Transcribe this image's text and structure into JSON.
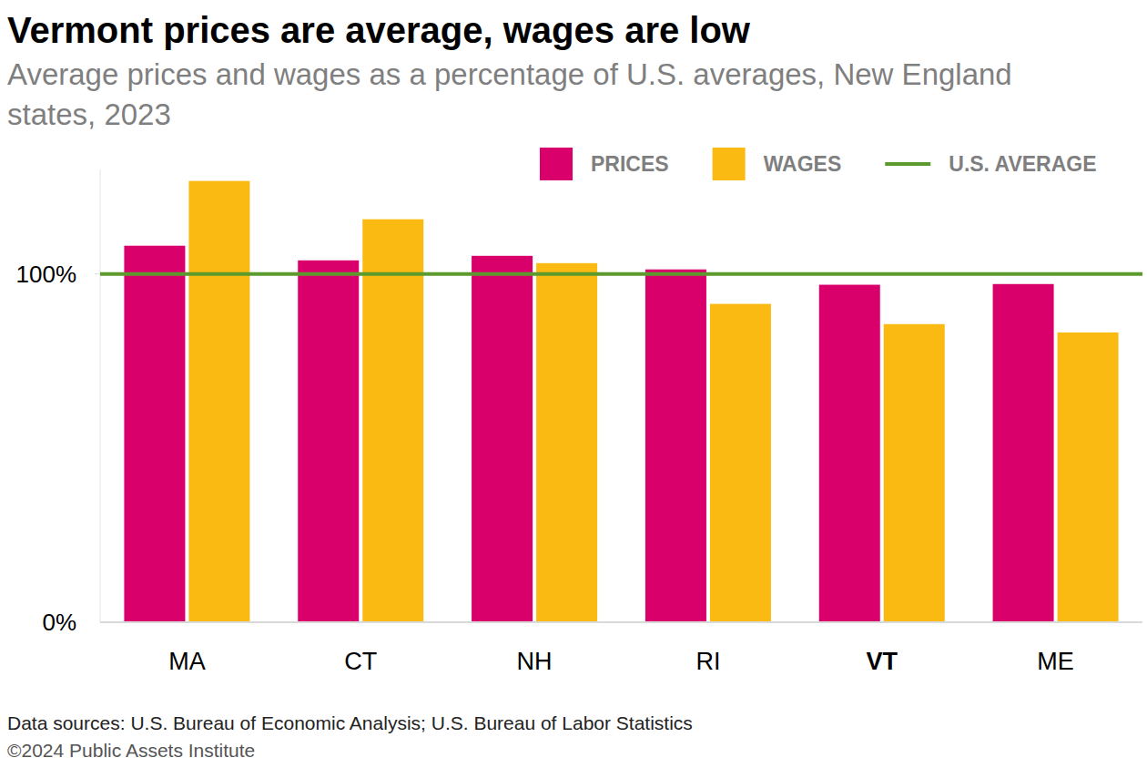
{
  "chart_data": {
    "type": "bar",
    "title": "Vermont prices are average, wages are low",
    "subtitle": "Average prices and wages as a percentage of U.S. averages, New England states, 2023",
    "sources": "Data sources: U.S. Bureau of Economic Analysis; U.S. Bureau of Labor Statistics",
    "copyright": "©2024 Public Assets Institute",
    "categories": [
      "MA",
      "CT",
      "NH",
      "RI",
      "VT",
      "ME"
    ],
    "series": [
      {
        "name": "PRICES",
        "color": "#d9006c",
        "values": [
          108.1,
          103.9,
          105.2,
          101.3,
          96.9,
          97.1
        ]
      },
      {
        "name": "WAGES",
        "color": "#fbba12",
        "values": [
          126.7,
          115.7,
          103.1,
          91.4,
          85.6,
          83.2
        ]
      }
    ],
    "reference_lines": [
      {
        "name": "U.S. AVERAGE",
        "value": 100,
        "color": "#5c9a2e"
      }
    ],
    "ylim": [
      0,
      130
    ],
    "yticks": [
      {
        "value": 0,
        "label": "0%"
      },
      {
        "value": 100,
        "label": "100%"
      }
    ],
    "grid": false,
    "legend": "top-right"
  }
}
